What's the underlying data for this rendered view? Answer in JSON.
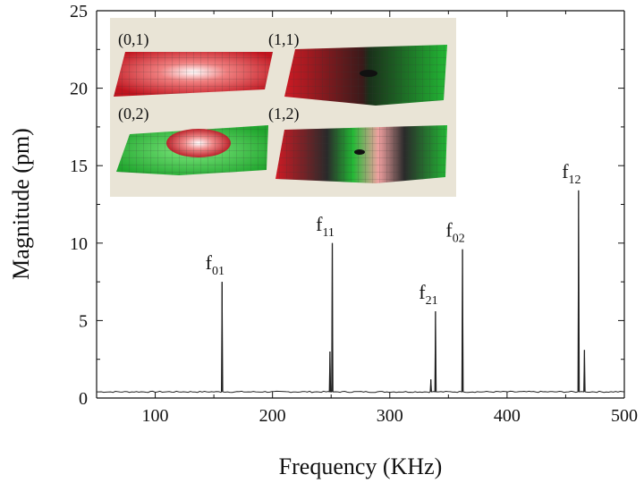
{
  "chart_data": {
    "type": "line",
    "xlabel": "Frequency (KHz)",
    "ylabel": "Magnitude (pm)",
    "xlim": [
      50,
      500
    ],
    "ylim": [
      0,
      25
    ],
    "xticks": [
      100,
      200,
      300,
      400,
      500
    ],
    "yticks": [
      0,
      5,
      10,
      15,
      20,
      25
    ],
    "xtick_labels": [
      "100",
      "200",
      "300",
      "400",
      "500"
    ],
    "ytick_labels": [
      "0",
      "5",
      "10",
      "15",
      "20",
      "25"
    ],
    "grid": false,
    "baseline": 0.4,
    "series": [
      {
        "color": "#222222",
        "peaks": [
          {
            "x": 157,
            "y": 7.5
          },
          {
            "x": 249,
            "y": 3.0
          },
          {
            "x": 251,
            "y": 10.0
          },
          {
            "x": 335,
            "y": 1.2
          },
          {
            "x": 339,
            "y": 5.6
          },
          {
            "x": 362,
            "y": 9.6
          },
          {
            "x": 461,
            "y": 13.4
          },
          {
            "x": 466,
            "y": 3.1
          }
        ]
      }
    ],
    "annotations": [
      {
        "base": "f",
        "sub": "01",
        "x": 157,
        "y": 7.5
      },
      {
        "base": "f",
        "sub": "11",
        "x": 251,
        "y": 10.0
      },
      {
        "base": "f",
        "sub": "21",
        "x": 339,
        "y": 5.6
      },
      {
        "base": "f",
        "sub": "02",
        "x": 362,
        "y": 9.6
      },
      {
        "base": "f",
        "sub": "12",
        "x": 461,
        "y": 13.4
      }
    ]
  },
  "inset": {
    "labels": [
      "(0,1)",
      "(1,1)",
      "(0,2)",
      "(1,2)"
    ],
    "colors": {
      "background": "#e9e4d6",
      "red": "#d8202a",
      "green": "#27c437",
      "grid": "#555555"
    }
  }
}
